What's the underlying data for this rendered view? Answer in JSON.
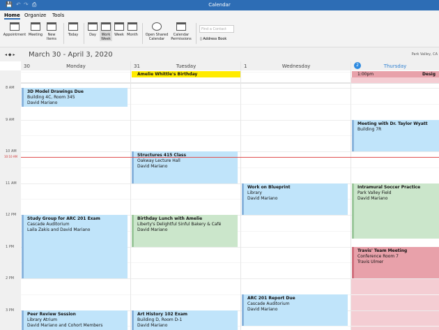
{
  "app": {
    "title": "Calendar"
  },
  "ribbon_tabs": [
    "Home",
    "Organize",
    "Tools"
  ],
  "ribbon": {
    "appointment": "Appointment",
    "meeting": "Meeting",
    "new_items": "New Items",
    "today": "Today",
    "day": "Day",
    "work_week": "Work Week",
    "week": "Week",
    "month": "Month",
    "open_shared": "Open Shared Calendar",
    "permissions": "Calendar Permissions",
    "find_placeholder": "Find a Contact",
    "address_book": "Address Book"
  },
  "date_range": "March 30 - April 3, 2020",
  "location": "Park Valley, CA",
  "days": [
    {
      "num": "30",
      "name": "Monday"
    },
    {
      "num": "31",
      "name": "Tuesday"
    },
    {
      "num": "1",
      "name": "Wednesday"
    },
    {
      "num": "2",
      "name": "Thursday",
      "today": true
    }
  ],
  "all_day": [
    {
      "title": "Amelie Whittle's Birthday",
      "day": 1,
      "color": "#ffeb00"
    },
    {
      "time": "1:00pm",
      "title": "Desig",
      "day": 3,
      "color": "#e8a1aa"
    }
  ],
  "hours": [
    "8 AM",
    "9 AM",
    "10 AM",
    "11 AM",
    "12 PM",
    "1 PM",
    "2 PM",
    "3 PM"
  ],
  "current_time": "10:10 AM",
  "events": [
    {
      "title": "3D Model Drawings Due",
      "loc": "Building 4C, Room 345",
      "who": "David Mariano",
      "day": 0,
      "start": 8,
      "end": 8.6,
      "color": "blue"
    },
    {
      "title": "Structures 415 Class",
      "loc": "Oakway Lecture Hall",
      "who": "David Mariano",
      "day": 1,
      "start": 10,
      "end": 11,
      "color": "blue"
    },
    {
      "title": "Meeting with Dr. Taylor Wyatt",
      "loc": "Building 7R",
      "who": "",
      "day": 3,
      "start": 9,
      "end": 10,
      "color": "blue"
    },
    {
      "title": "Work on Blueprint",
      "loc": "Library",
      "who": "David Mariano",
      "day": 2,
      "start": 11,
      "end": 12,
      "color": "blue"
    },
    {
      "title": "Intramural Soccer Practice",
      "loc": "Park Valley Field",
      "who": "David Mariano",
      "day": 3,
      "start": 11,
      "end": 12.75,
      "color": "green"
    },
    {
      "title": "Study Group for ARC 201 Exam",
      "loc": "Cascade Auditorium",
      "who": "Laila Zakis and David Mariano",
      "day": 0,
      "start": 12,
      "end": 14,
      "color": "blue"
    },
    {
      "title": "Birthday Lunch with Amelie",
      "loc": "Liberty's Delightful Sinful Bakery & Café",
      "who": "David Mariano",
      "day": 1,
      "start": 12,
      "end": 13,
      "color": "green"
    },
    {
      "title": "Travis' Team Meeting",
      "loc": "Conference Room 7",
      "who": "Travis Ulmer",
      "day": 3,
      "start": 13,
      "end": 14,
      "color": "red"
    },
    {
      "title": "ARC 201 Report Due",
      "loc": "Cascade Auditorium",
      "who": "David Mariano",
      "day": 2,
      "start": 14.5,
      "end": 15.5,
      "color": "blue"
    },
    {
      "title": "Peer Review Session",
      "loc": "Library Atrium",
      "who": "David Mariano and Cohort Members",
      "day": 0,
      "start": 15,
      "end": 16,
      "color": "blue"
    },
    {
      "title": "Art History 102 Exam",
      "loc": "Building D, Room D-1",
      "who": "David Mariano",
      "day": 1,
      "start": 15,
      "end": 16,
      "color": "blue"
    }
  ],
  "colors": {
    "accent": "#2d6db5",
    "event_blue": "#c0e4fa",
    "event_green": "#cbe6cb",
    "event_red": "#e8a1aa",
    "busy_pink": "#f4cdd3",
    "now_line": "#e05050"
  }
}
